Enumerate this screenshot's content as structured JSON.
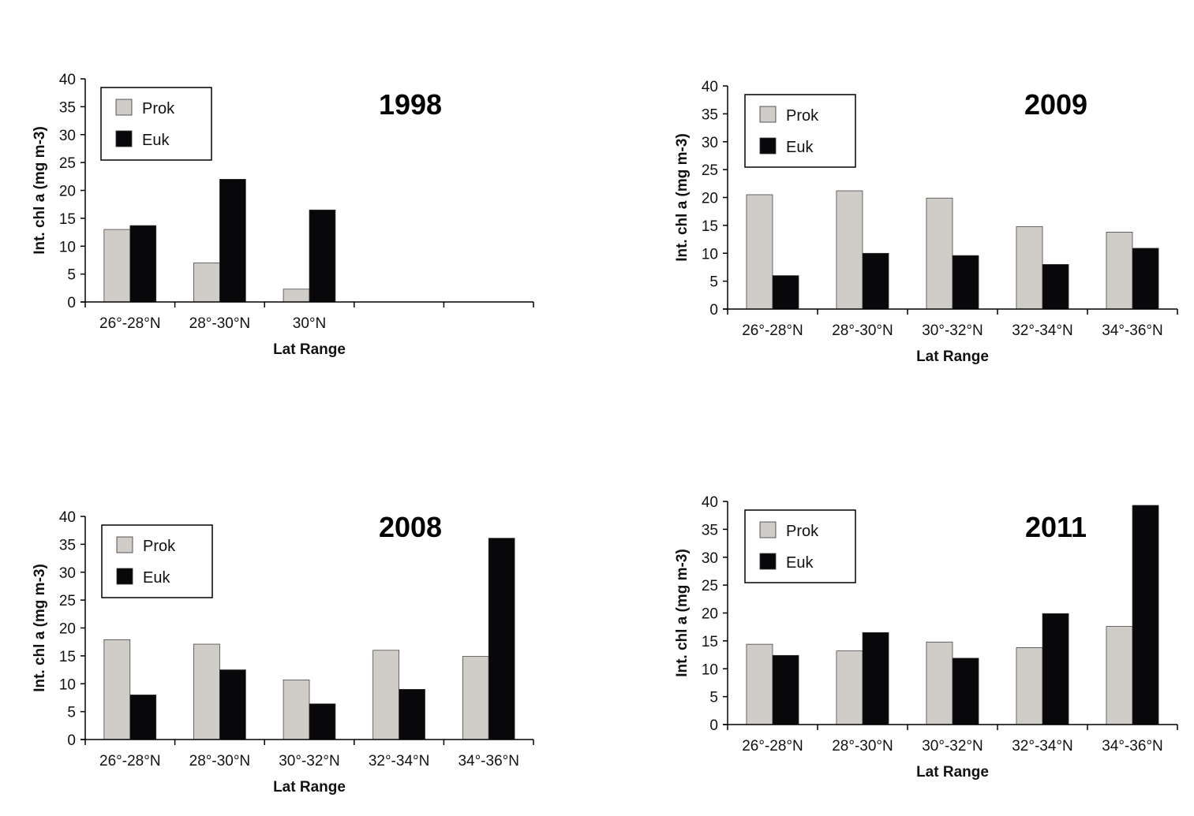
{
  "colors": {
    "prok": "#d0ccc8",
    "euk": "#08080a",
    "axis": "#000000"
  },
  "chart_data": [
    {
      "type": "bar",
      "title": "1998",
      "xlabel": "Lat Range",
      "ylabel": "Int. chl a (mg m-3)",
      "ylim": [
        0,
        40
      ],
      "yticks": [
        0,
        5,
        10,
        15,
        20,
        25,
        30,
        35,
        40
      ],
      "categories": [
        "26°-28°N",
        "28°-30°N",
        "30°N",
        "",
        ""
      ],
      "series": [
        {
          "name": "Prok",
          "values": [
            13,
            7,
            2.3,
            null,
            null
          ]
        },
        {
          "name": "Euk",
          "values": [
            13.7,
            22,
            16.5,
            null,
            null
          ]
        }
      ],
      "legend": "top-left",
      "grid": false
    },
    {
      "type": "bar",
      "title": "2009",
      "xlabel": "Lat Range",
      "ylabel": "Int. chl a (mg m-3)",
      "ylim": [
        0,
        40
      ],
      "yticks": [
        0,
        5,
        10,
        15,
        20,
        25,
        30,
        35,
        40
      ],
      "categories": [
        "26°-28°N",
        "28°-30°N",
        "30°-32°N",
        "32°-34°N",
        "34°-36°N"
      ],
      "series": [
        {
          "name": "Prok",
          "values": [
            20.5,
            21.2,
            19.9,
            14.8,
            13.8
          ]
        },
        {
          "name": "Euk",
          "values": [
            6,
            10,
            9.6,
            8,
            10.9
          ]
        }
      ],
      "legend": "top-left",
      "grid": false
    },
    {
      "type": "bar",
      "title": "2008",
      "xlabel": "Lat Range",
      "ylabel": "Int. chl a (mg m-3)",
      "ylim": [
        0,
        40
      ],
      "yticks": [
        0,
        5,
        10,
        15,
        20,
        25,
        30,
        35,
        40
      ],
      "categories": [
        "26°-28°N",
        "28°-30°N",
        "30°-32°N",
        "32°-34°N",
        "34°-36°N"
      ],
      "series": [
        {
          "name": "Prok",
          "values": [
            17.9,
            17.1,
            10.7,
            16,
            14.9
          ]
        },
        {
          "name": "Euk",
          "values": [
            8,
            12.5,
            6.4,
            9,
            36.1
          ]
        }
      ],
      "legend": "top-left",
      "grid": false
    },
    {
      "type": "bar",
      "title": "2011",
      "xlabel": "Lat Range",
      "ylabel": "Int. chl a (mg m-3)",
      "ylim": [
        0,
        40
      ],
      "yticks": [
        0,
        5,
        10,
        15,
        20,
        25,
        30,
        35,
        40
      ],
      "categories": [
        "26°-28°N",
        "28°-30°N",
        "30°-32°N",
        "32°-34°N",
        "34°-36°N"
      ],
      "series": [
        {
          "name": "Prok",
          "values": [
            14.4,
            13.2,
            14.8,
            13.8,
            17.6
          ]
        },
        {
          "name": "Euk",
          "values": [
            12.4,
            16.5,
            11.9,
            19.9,
            39.3
          ]
        }
      ],
      "legend": "top-left",
      "grid": false
    }
  ]
}
